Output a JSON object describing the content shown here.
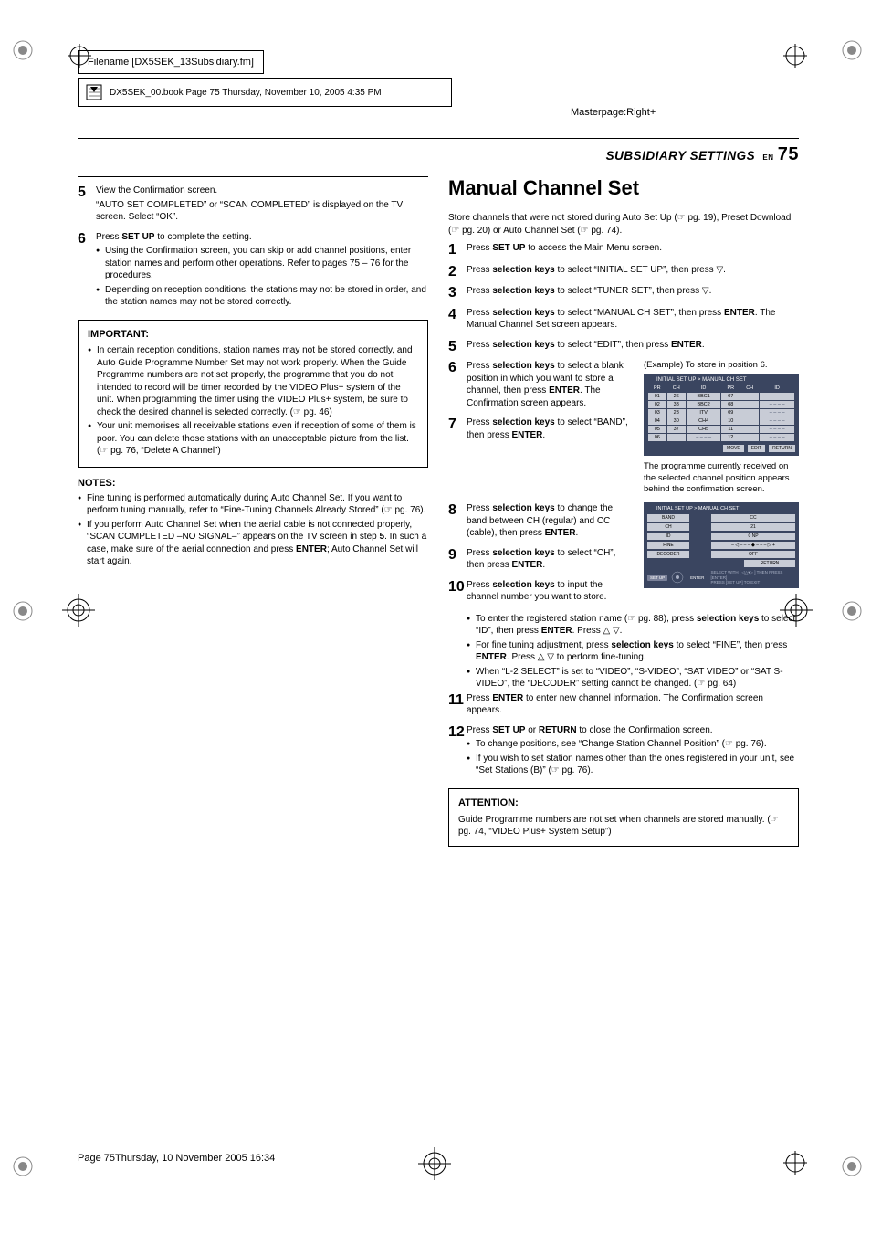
{
  "meta": {
    "filename": "Filename [DX5SEK_13Subsidiary.fm]",
    "book_info": "DX5SEK_00.book  Page 75  Thursday, November 10, 2005  4:35 PM",
    "masterpage": "Masterpage:Right+",
    "header_title": "SUBSIDIARY SETTINGS",
    "header_en": "EN",
    "header_page": "75",
    "footer": "Page 75Thursday, 10 November 2005  16:34"
  },
  "left": {
    "step5_num": "5",
    "step5_line1": "View the Confirmation screen.",
    "step5_line2": "“AUTO SET COMPLETED” or “SCAN COMPLETED” is displayed on the TV screen. Select “OK”.",
    "step6_num": "6",
    "step6_line1_a": "Press ",
    "step6_line1_b": "SET UP",
    "step6_line1_c": " to complete the setting.",
    "step6_b1": "Using the Confirmation screen, you can skip or add channel positions, enter station names and perform other operations. Refer to pages 75 – 76 for the procedures.",
    "step6_b2": "Depending on reception conditions, the stations may not be stored in order, and the station names may not be stored correctly.",
    "important_title": "IMPORTANT:",
    "important_b1": "In certain reception conditions, station names may not be stored correctly, and Auto Guide Programme Number Set may not work properly. When the Guide Programme numbers are not set properly, the programme that you do not intended to record will be timer recorded by the VIDEO Plus+ system of the unit. When programming the timer using the VIDEO Plus+ system, be sure to check the desired channel is selected correctly. (☞ pg. 46)",
    "important_b2": "Your unit memorises all receivable stations even if reception of some of them is poor. You can delete those stations with an unacceptable picture from the list. (☞ pg. 76, “Delete A Channel”)",
    "notes_title": "NOTES:",
    "notes_b1": "Fine tuning is performed automatically during Auto Channel Set. If you want to perform tuning manually, refer to “Fine-Tuning Channels Already Stored” (☞ pg. 76).",
    "notes_b2_a": "If you perform Auto Channel Set when the aerial cable is not connected properly, “SCAN COMPLETED –NO SIGNAL–” appears on the TV screen in step ",
    "notes_b2_num": "5",
    "notes_b2_b": ". In such a case, make sure of the aerial connection and press ",
    "notes_b2_enter": "ENTER",
    "notes_b2_c": "; Auto Channel Set will start again."
  },
  "right": {
    "title": "Manual Channel Set",
    "intro": "Store channels that were not stored during Auto Set Up (☞ pg. 19), Preset Download (☞ pg. 20) or Auto Channel Set (☞ pg. 74).",
    "step1_num": "1",
    "step1_a": "Press ",
    "step1_b": "SET UP",
    "step1_c": " to access the Main Menu screen.",
    "step2_num": "2",
    "step2_a": "Press ",
    "step2_b": "selection keys",
    "step2_c": " to select “INITIAL SET UP”, then press ",
    "step2_d": "▽.",
    "step3_num": "3",
    "step3_a": "Press ",
    "step3_b": "selection keys",
    "step3_c": " to select “TUNER SET”, then press ▽.",
    "step4_num": "4",
    "step4_a": "Press ",
    "step4_b": "selection keys",
    "step4_c": " to select “MANUAL CH SET”, then press ",
    "step4_enter": "ENTER",
    "step4_d": ". The Manual Channel Set screen appears.",
    "step5_num": "5",
    "step5_a": "Press ",
    "step5_b": "selection keys",
    "step5_c": " to select “EDIT”, then press ",
    "step5_enter": "ENTER",
    "step5_d": ".",
    "step6_num": "6",
    "step6_a": "Press ",
    "step6_b": "selection keys",
    "step6_c": " to select a blank position in which you want to store a channel, then press ",
    "step6_enter": "ENTER",
    "step6_d": ". The Confirmation screen appears.",
    "step7_num": "7",
    "step7_a": "Press ",
    "step7_b": "selection keys",
    "step7_c": " to select “BAND”, then press ",
    "step7_enter": "ENTER",
    "step7_d": ".",
    "example_caption": "(Example) To store in position 6.",
    "screenshot1": {
      "title": "INITIAL SET UP > MANUAL CH SET",
      "headers": [
        "PR",
        "CH",
        "ID",
        "PR",
        "CH",
        "ID"
      ],
      "rows": [
        [
          "01",
          "26",
          "BBC1",
          "07",
          "",
          "– – – –"
        ],
        [
          "02",
          "33",
          "BBC2",
          "08",
          "",
          "– – – –"
        ],
        [
          "03",
          "23",
          "ITV",
          "09",
          "",
          "– – – –"
        ],
        [
          "04",
          "30",
          "CH4",
          "10",
          "",
          "– – – –"
        ],
        [
          "05",
          "37",
          "CH5",
          "11",
          "",
          "– – – –"
        ],
        [
          "06",
          "",
          "– – – –",
          "12",
          "",
          "– – – –"
        ]
      ],
      "buttons": [
        "MOVE",
        "EDIT",
        "RETURN"
      ]
    },
    "below_caption": "The programme currently received on the selected channel position appears behind the confirmation screen.",
    "step8_num": "8",
    "step8_a": "Press ",
    "step8_b": "selection keys",
    "step8_c": " to change the band between CH (regular) and CC (cable), then press ",
    "step8_enter": "ENTER",
    "step8_d": ".",
    "step9_num": "9",
    "step9_a": "Press ",
    "step9_b": "selection keys",
    "step9_c": " to select “CH”, then press ",
    "step9_enter": "ENTER",
    "step9_d": ".",
    "step10_num": "10",
    "step10_a": "Press ",
    "step10_b": "selection keys",
    "step10_c": " to input the channel number you want to store.",
    "step10_b1_a": "To enter the registered station name (☞ pg. 88), press ",
    "step10_b1_b": "selection keys",
    "step10_b1_c": " to select “ID”, then press ",
    "step10_b1_enter": "ENTER",
    "step10_b1_d": ". Press △ ▽.",
    "step10_b2_a": "For fine tuning adjustment, press ",
    "step10_b2_b": "selection keys",
    "step10_b2_c": " to select “FINE”, then press ",
    "step10_b2_enter": "ENTER",
    "step10_b2_d": ". Press △ ▽ to perform fine-tuning.",
    "step10_b3": "When “L-2 SELECT” is set to “VIDEO”, “S-VIDEO”, “SAT VIDEO” or “SAT S-VIDEO”, the “DECODER” setting cannot be changed. (☞ pg. 64)",
    "screenshot2": {
      "title": "INITIAL SET UP > MANUAL CH SET",
      "rows": [
        {
          "label": "BAND",
          "value": "CC"
        },
        {
          "label": "CH",
          "value": "21"
        },
        {
          "label": "ID",
          "value": "0 NP"
        },
        {
          "label": "FINE",
          "value": "– ◁ – – – ◆ – – – ▷ +"
        },
        {
          "label": "DECODER",
          "value": "OFF"
        }
      ],
      "return": "RETURN",
      "hint1": "SET UP",
      "hint1b": "ENTER",
      "hint2": "SELECT WITH [ ◁△▾▷ ] THEN PRESS [ENTER]",
      "hint3": "PRESS [SET UP] TO EXIT"
    },
    "step11_num": "11",
    "step11_a": "Press ",
    "step11_b": "ENTER",
    "step11_c": " to enter new channel information. The Confirmation screen appears.",
    "step12_num": "12",
    "step12_a": "Press ",
    "step12_b": "SET UP",
    "step12_c": " or ",
    "step12_d": "RETURN",
    "step12_e": " to close the Confirmation screen.",
    "step12_bu1": "To change positions, see “Change Station Channel Position” (☞ pg. 76).",
    "step12_bu2": "If you wish to set station names other than the ones registered in your unit, see “Set Stations (B)” (☞ pg. 76).",
    "attention_title": "ATTENTION:",
    "attention_body": "Guide Programme numbers are not set when channels are stored manually. (☞ pg. 74, “VIDEO Plus+ System Setup”)"
  },
  "style": {
    "page_bg": "#ffffff",
    "screenshot_bg": "#3a4560",
    "screenshot_cell_bg": "#c8ccd6",
    "title_font": "Arial Narrow"
  }
}
